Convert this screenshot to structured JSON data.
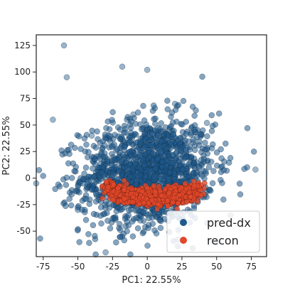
{
  "chart_data": {
    "type": "scatter",
    "title": "",
    "xlabel": "PC1: 22.55%",
    "ylabel": "PC2: 22.55%",
    "xlim": [
      -80,
      86
    ],
    "ylim": [
      -74,
      135
    ],
    "xticks": [
      -75,
      -50,
      -25,
      0,
      25,
      50,
      75
    ],
    "yticks": [
      -50,
      -25,
      0,
      25,
      50,
      75,
      100,
      125
    ],
    "grid": false,
    "legend_position": "bottom-right",
    "series": [
      {
        "name": "pred-dx",
        "color": "#1f5a8c",
        "distribution": "broad cloud centered near (0, 5), spread approx x in [-75, 78], y in [-55, 125]",
        "sample_points": [
          [
            -60,
            125
          ],
          [
            -18,
            105
          ],
          [
            0,
            102
          ],
          [
            -58,
            95
          ],
          [
            -68,
            55
          ],
          [
            -80,
            -5
          ],
          [
            -30,
            -70
          ],
          [
            -5,
            -40
          ],
          [
            60,
            -35
          ],
          [
            78,
            8
          ],
          [
            43,
            52
          ],
          [
            -10,
            60
          ],
          [
            20,
            70
          ],
          [
            -40,
            40
          ],
          [
            -50,
            -30
          ]
        ]
      },
      {
        "name": "recon",
        "color": "#e2492b",
        "distribution": "crescent band from about (-30, 12) dipping to (0, -18) and rising to (38, 18)",
        "sample_points": [
          [
            -30,
            12
          ],
          [
            -25,
            2
          ],
          [
            -18,
            -6
          ],
          [
            -10,
            -12
          ],
          [
            0,
            -16
          ],
          [
            10,
            -16
          ],
          [
            18,
            -12
          ],
          [
            25,
            -5
          ],
          [
            30,
            2
          ],
          [
            35,
            10
          ],
          [
            38,
            18
          ]
        ]
      }
    ]
  }
}
